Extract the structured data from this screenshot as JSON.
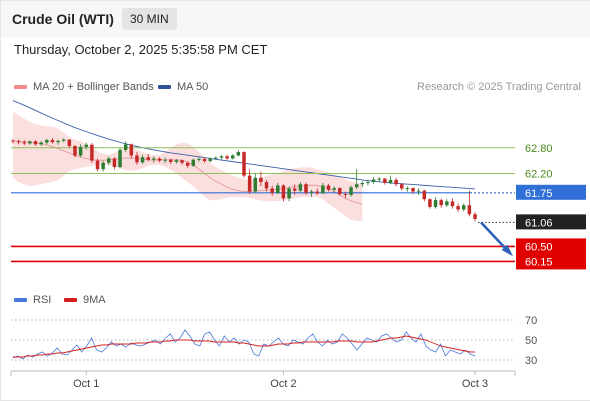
{
  "header": {
    "title": "Crude Oil (WTI)",
    "timeframe": "30 MIN"
  },
  "datetime": "Thursday, October 2, 2025 5:35:58 PM CET",
  "legend": {
    "bb": "MA 20 + Bollinger Bands",
    "ma50": "MA 50",
    "rsi": "RSI",
    "rsi_ma": "9MA",
    "credit": "Research © 2025 Trading Central"
  },
  "colors": {
    "up": "#2e7d32",
    "down": "#c62828",
    "bb_fill": "#f9d4d4",
    "ma20": "#e8a0a0",
    "ma50": "#3a5fa8",
    "support": "#e00000",
    "resistance": "#8fbf5a",
    "pivot": "#2f6fd6",
    "current": "#222222",
    "rsi": "#4a78d8",
    "rsi_ma": "#d42020"
  },
  "chart_data": {
    "type": "candlestick",
    "instrument": "Crude Oil (WTI)",
    "interval": "30 MIN",
    "x_labels": [
      "Oct 1",
      "Oct 2",
      "Oct 3"
    ],
    "x_label_positions": [
      13,
      48,
      82
    ],
    "candles": [
      [
        62.97,
        63.0,
        62.9,
        62.95
      ],
      [
        62.95,
        62.99,
        62.88,
        62.93
      ],
      [
        62.93,
        62.98,
        62.86,
        62.9
      ],
      [
        62.9,
        62.97,
        62.87,
        62.95
      ],
      [
        62.95,
        62.98,
        62.85,
        62.88
      ],
      [
        62.88,
        62.96,
        62.84,
        62.92
      ],
      [
        62.92,
        63.01,
        62.88,
        62.98
      ],
      [
        62.98,
        63.03,
        62.9,
        62.93
      ],
      [
        62.93,
        62.99,
        62.87,
        62.96
      ],
      [
        62.96,
        63.02,
        62.93,
        62.99
      ],
      [
        62.99,
        63.0,
        62.8,
        62.84
      ],
      [
        62.84,
        62.86,
        62.58,
        62.62
      ],
      [
        62.62,
        62.88,
        62.58,
        62.82
      ],
      [
        62.82,
        62.92,
        62.76,
        62.87
      ],
      [
        62.87,
        62.91,
        62.45,
        62.5
      ],
      [
        62.5,
        62.55,
        62.25,
        62.3
      ],
      [
        62.3,
        62.5,
        62.25,
        62.45
      ],
      [
        62.45,
        62.6,
        62.4,
        62.55
      ],
      [
        62.55,
        62.58,
        62.3,
        62.35
      ],
      [
        62.35,
        62.8,
        62.32,
        62.75
      ],
      [
        62.75,
        62.95,
        62.7,
        62.88
      ],
      [
        62.88,
        62.9,
        62.55,
        62.62
      ],
      [
        62.62,
        62.7,
        62.4,
        62.46
      ],
      [
        62.46,
        62.64,
        62.42,
        62.58
      ],
      [
        62.58,
        62.66,
        62.48,
        62.52
      ],
      [
        62.52,
        62.6,
        62.45,
        62.55
      ],
      [
        62.55,
        62.58,
        62.46,
        62.5
      ],
      [
        62.5,
        62.57,
        62.44,
        62.52
      ],
      [
        62.52,
        62.55,
        62.42,
        62.47
      ],
      [
        62.47,
        62.54,
        62.43,
        62.51
      ],
      [
        62.51,
        62.53,
        62.4,
        62.45
      ],
      [
        62.45,
        62.48,
        62.33,
        62.38
      ],
      [
        62.38,
        62.55,
        62.35,
        62.52
      ],
      [
        62.52,
        62.58,
        62.47,
        62.54
      ],
      [
        62.54,
        62.58,
        62.45,
        62.49
      ],
      [
        62.49,
        62.57,
        62.46,
        62.55
      ],
      [
        62.55,
        62.6,
        62.51,
        62.57
      ],
      [
        62.57,
        62.63,
        62.53,
        62.6
      ],
      [
        62.6,
        62.64,
        62.52,
        62.55
      ],
      [
        62.55,
        62.65,
        62.53,
        62.62
      ],
      [
        62.62,
        62.75,
        62.6,
        62.7
      ],
      [
        62.7,
        62.72,
        62.1,
        62.15
      ],
      [
        62.15,
        62.3,
        61.72,
        61.78
      ],
      [
        61.78,
        62.2,
        61.75,
        62.1
      ],
      [
        62.1,
        62.25,
        61.9,
        62.0
      ],
      [
        62.0,
        62.05,
        61.78,
        61.85
      ],
      [
        61.85,
        61.92,
        61.68,
        61.75
      ],
      [
        61.75,
        61.98,
        61.72,
        61.92
      ],
      [
        61.92,
        61.95,
        61.55,
        61.62
      ],
      [
        61.62,
        61.9,
        61.55,
        61.85
      ],
      [
        61.85,
        61.95,
        61.7,
        61.8
      ],
      [
        61.8,
        62.0,
        61.76,
        61.95
      ],
      [
        61.95,
        61.99,
        61.7,
        61.75
      ],
      [
        61.75,
        61.82,
        61.65,
        61.78
      ],
      [
        61.78,
        61.85,
        61.7,
        61.74
      ],
      [
        61.74,
        61.98,
        61.72,
        61.92
      ],
      [
        61.92,
        61.96,
        61.78,
        61.82
      ],
      [
        61.82,
        61.9,
        61.75,
        61.86
      ],
      [
        61.86,
        61.88,
        61.68,
        61.72
      ],
      [
        61.72,
        61.78,
        61.62,
        61.7
      ],
      [
        61.7,
        61.92,
        61.66,
        61.88
      ],
      [
        61.88,
        62.3,
        61.84,
        61.95
      ],
      [
        61.95,
        62.02,
        61.88,
        61.98
      ],
      [
        61.98,
        62.05,
        61.92,
        62.0
      ],
      [
        62.0,
        62.12,
        61.96,
        62.06
      ],
      [
        62.06,
        62.12,
        62.0,
        62.08
      ],
      [
        62.08,
        62.1,
        61.94,
        61.98
      ],
      [
        61.98,
        62.15,
        61.95,
        62.05
      ],
      [
        62.05,
        62.1,
        61.9,
        61.95
      ],
      [
        61.95,
        61.98,
        61.8,
        61.85
      ],
      [
        61.85,
        61.9,
        61.78,
        61.86
      ],
      [
        61.86,
        61.88,
        61.72,
        61.78
      ],
      [
        61.78,
        61.86,
        61.7,
        61.8
      ],
      [
        61.8,
        61.82,
        61.55,
        61.6
      ],
      [
        61.6,
        61.62,
        61.38,
        61.42
      ],
      [
        61.42,
        61.65,
        61.38,
        61.58
      ],
      [
        61.58,
        61.62,
        61.4,
        61.46
      ],
      [
        61.46,
        61.6,
        61.42,
        61.55
      ],
      [
        61.55,
        61.62,
        61.38,
        61.44
      ],
      [
        61.44,
        61.5,
        61.3,
        61.36
      ],
      [
        61.36,
        61.5,
        61.32,
        61.46
      ],
      [
        61.46,
        61.8,
        61.2,
        61.25
      ],
      [
        61.25,
        61.3,
        61.08,
        61.14
      ]
    ],
    "ma20": [
      62.96,
      62.95,
      62.94,
      62.93,
      62.92,
      62.9,
      62.87,
      62.83,
      62.78,
      62.73,
      62.68,
      62.62,
      62.58,
      62.55,
      62.52,
      62.51,
      62.51,
      62.52,
      62.54,
      62.55,
      62.56,
      62.56,
      62.55,
      62.53,
      62.52,
      62.51,
      62.52,
      62.52,
      62.52,
      62.52,
      62.51,
      62.47,
      62.4,
      62.3,
      62.2,
      62.1,
      62.02,
      61.95,
      61.88,
      61.83,
      61.8,
      61.78,
      61.78,
      61.79,
      61.8,
      61.81,
      61.82,
      61.83,
      61.85,
      61.87,
      61.89,
      61.91,
      61.92,
      61.93,
      61.92,
      61.89,
      61.84,
      61.78,
      61.7,
      61.62,
      61.56,
      61.52,
      61.48
    ],
    "ma20_start": 20,
    "bb_upper": [
      63.65,
      63.55,
      63.48,
      63.4,
      63.35,
      63.32,
      63.3,
      63.3,
      63.25,
      63.15,
      63.05,
      62.98,
      62.95,
      62.9,
      62.82,
      62.72,
      62.66,
      62.64,
      62.68,
      62.75,
      62.8,
      62.8,
      62.75,
      62.7,
      62.65,
      62.62,
      62.63,
      62.7,
      62.8,
      62.88,
      62.92,
      62.9,
      62.82,
      62.7,
      62.57,
      62.45,
      62.35,
      62.28,
      62.22,
      62.15,
      62.1,
      62.06,
      62.05,
      62.06,
      62.1,
      62.15,
      62.18,
      62.2,
      62.25,
      62.3,
      62.32,
      62.34,
      62.35,
      62.34,
      62.3,
      62.26,
      62.22,
      62.18,
      62.12,
      62.06,
      62.02,
      61.98,
      61.95
    ],
    "bb_lower": [
      62.1,
      62.0,
      61.95,
      61.9,
      61.92,
      61.95,
      61.98,
      62.0,
      62.05,
      62.15,
      62.25,
      62.3,
      62.33,
      62.35,
      62.38,
      62.4,
      62.4,
      62.39,
      62.36,
      62.32,
      62.28,
      62.27,
      62.28,
      62.32,
      62.38,
      62.4,
      62.4,
      62.36,
      62.28,
      62.2,
      62.1,
      62.0,
      61.9,
      61.78,
      61.65,
      61.58,
      61.58,
      61.6,
      61.63,
      61.65,
      61.65,
      61.65,
      61.63,
      61.6,
      61.57,
      61.55,
      61.55,
      61.56,
      61.57,
      61.6,
      61.62,
      61.65,
      61.66,
      61.66,
      61.65,
      61.6,
      61.5,
      61.4,
      61.3,
      61.2,
      61.12,
      61.1,
      61.08
    ],
    "ma50": [
      63.9,
      63.78,
      63.65,
      63.52,
      63.4,
      63.28,
      63.18,
      63.08,
      62.99,
      62.91,
      62.84,
      62.78,
      62.73,
      62.68,
      62.64,
      62.6,
      62.56,
      62.52,
      62.48,
      62.44,
      62.4,
      62.36,
      62.32,
      62.28,
      62.24,
      62.2,
      62.16,
      62.12,
      62.08,
      62.04,
      62.01,
      61.98,
      61.96,
      61.94,
      61.92,
      61.9,
      61.88,
      61.86,
      61.84
    ],
    "ma50_x": [
      0,
      2,
      4,
      6,
      8,
      10,
      12,
      14,
      16,
      18,
      20,
      22,
      24,
      26,
      28,
      30,
      32,
      34,
      36,
      38,
      40,
      42,
      44,
      46,
      48,
      50,
      52,
      54,
      56,
      58,
      60,
      62,
      64,
      66,
      68,
      70,
      72,
      74,
      76
    ],
    "levels": [
      {
        "value": 62.8,
        "label": "62.80",
        "kind": "resistance"
      },
      {
        "value": 62.2,
        "label": "62.20",
        "kind": "resistance"
      },
      {
        "value": 61.75,
        "label": "61.75",
        "kind": "pivot"
      },
      {
        "value": 61.06,
        "label": "61.06",
        "kind": "current"
      },
      {
        "value": 60.5,
        "label": "60.50",
        "kind": "support"
      },
      {
        "value": 60.15,
        "label": "60.15",
        "kind": "support"
      }
    ],
    "ylim": [
      59.95,
      64.1
    ],
    "forecast_arrow": {
      "from": 61.06,
      "to": 60.34,
      "direction": "down"
    },
    "rsi": {
      "ticks": [
        70,
        50,
        30
      ],
      "ylim": [
        22,
        78
      ],
      "values": [
        32,
        34,
        31,
        35,
        33,
        36,
        38,
        34,
        37,
        42,
        36,
        35,
        40,
        45,
        38,
        44,
        52,
        40,
        38,
        42,
        48,
        44,
        46,
        43,
        47,
        45,
        44,
        46,
        48,
        50,
        46,
        52,
        56,
        48,
        52,
        60,
        54,
        46,
        44,
        56,
        58,
        50,
        44,
        54,
        48,
        52,
        46,
        50,
        48,
        36,
        34,
        46,
        44,
        48,
        52,
        46,
        44,
        50,
        48,
        46,
        52,
        56,
        48,
        44,
        50,
        46,
        48,
        56,
        52,
        46,
        40,
        46,
        52,
        50,
        48,
        54,
        56,
        52,
        48,
        50,
        58,
        52,
        48,
        56,
        44,
        40,
        38,
        46,
        34,
        40,
        38,
        36,
        40,
        36,
        34
      ],
      "ma9": [
        33,
        33,
        33,
        34,
        34,
        35,
        35,
        36,
        36,
        37,
        37,
        38,
        39,
        40,
        41,
        42,
        43,
        44,
        45,
        45,
        46,
        46,
        46,
        46,
        46,
        47,
        47,
        47,
        48,
        48,
        48,
        49,
        49,
        50,
        50,
        50,
        50,
        49,
        49,
        49,
        49,
        48,
        48,
        48,
        48,
        48,
        47,
        47,
        46,
        45,
        44,
        44,
        44,
        45,
        46,
        46,
        46,
        47,
        47,
        48,
        48,
        48,
        48,
        48,
        48,
        48,
        49,
        49,
        49,
        49,
        48,
        48,
        48,
        48,
        49,
        50,
        51,
        52,
        52,
        53,
        54,
        53,
        52,
        51,
        50,
        48,
        46,
        44,
        43,
        42,
        41,
        40,
        39,
        38,
        38
      ]
    }
  }
}
